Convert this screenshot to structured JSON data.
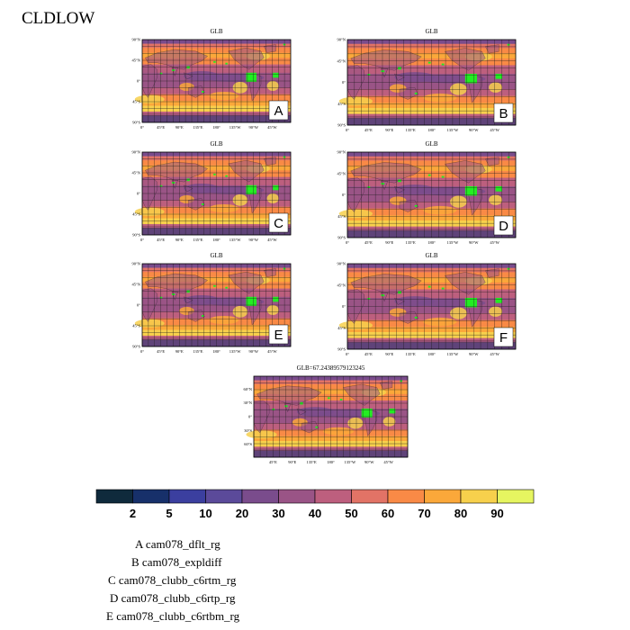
{
  "page_title": "CLDLOW",
  "colors": {
    "ocean_base": "#e38a63",
    "land_green": "#22ee22",
    "grid_line": "#1b1b1b",
    "coast_line": "#2a1a2a"
  },
  "panels": [
    {
      "id": "A",
      "title": "GLB",
      "letter": "A"
    },
    {
      "id": "B",
      "title": "GLB",
      "letter": "B"
    },
    {
      "id": "C",
      "title": "GLB",
      "letter": "C"
    },
    {
      "id": "D",
      "title": "GLB",
      "letter": "D"
    },
    {
      "id": "E",
      "title": "GLB",
      "letter": "E"
    },
    {
      "id": "F",
      "title": "GLB",
      "letter": "F"
    },
    {
      "id": "G",
      "title": "GLB=67.24389579123245",
      "letter": ""
    }
  ],
  "lat_ticks_full": [
    "90°N",
    "45°N",
    "0°",
    "45°S",
    "90°S"
  ],
  "lon_ticks_full": [
    "0°",
    "45°E",
    "90°E",
    "135°E",
    "180°",
    "135°W",
    "90°W",
    "45°W"
  ],
  "lat_ticks_small": [
    "60°N",
    "30°N",
    "0°",
    "30°S",
    "60°S"
  ],
  "lon_ticks_small": [
    "45°E",
    "90°E",
    "135°E",
    "180°",
    "135°W",
    "90°W",
    "45°W"
  ],
  "chart_data": {
    "type": "heatmap",
    "title": "CLDLOW",
    "colorbar": {
      "levels": [
        "2",
        "5",
        "10",
        "20",
        "30",
        "40",
        "50",
        "60",
        "70",
        "80",
        "90"
      ],
      "colors": [
        "#0f2a3c",
        "#17306a",
        "#3b3f9f",
        "#5b4a9a",
        "#7a4c8c",
        "#9a5486",
        "#bd5f7e",
        "#e27366",
        "#f98a46",
        "#fba83a",
        "#f7d04c",
        "#e6f560"
      ]
    },
    "global_mean_panel_G": 67.24389579123245
  },
  "legend": [
    {
      "letter": "A",
      "name": "cam078_dflt_rg"
    },
    {
      "letter": "B",
      "name": "cam078_expldiff"
    },
    {
      "letter": "C",
      "name": "cam078_clubb_c6rtm_rg"
    },
    {
      "letter": "D",
      "name": "cam078_clubb_c6rtp_rg"
    },
    {
      "letter": "E",
      "name": "cam078_clubb_c6rtbm_rg"
    }
  ]
}
